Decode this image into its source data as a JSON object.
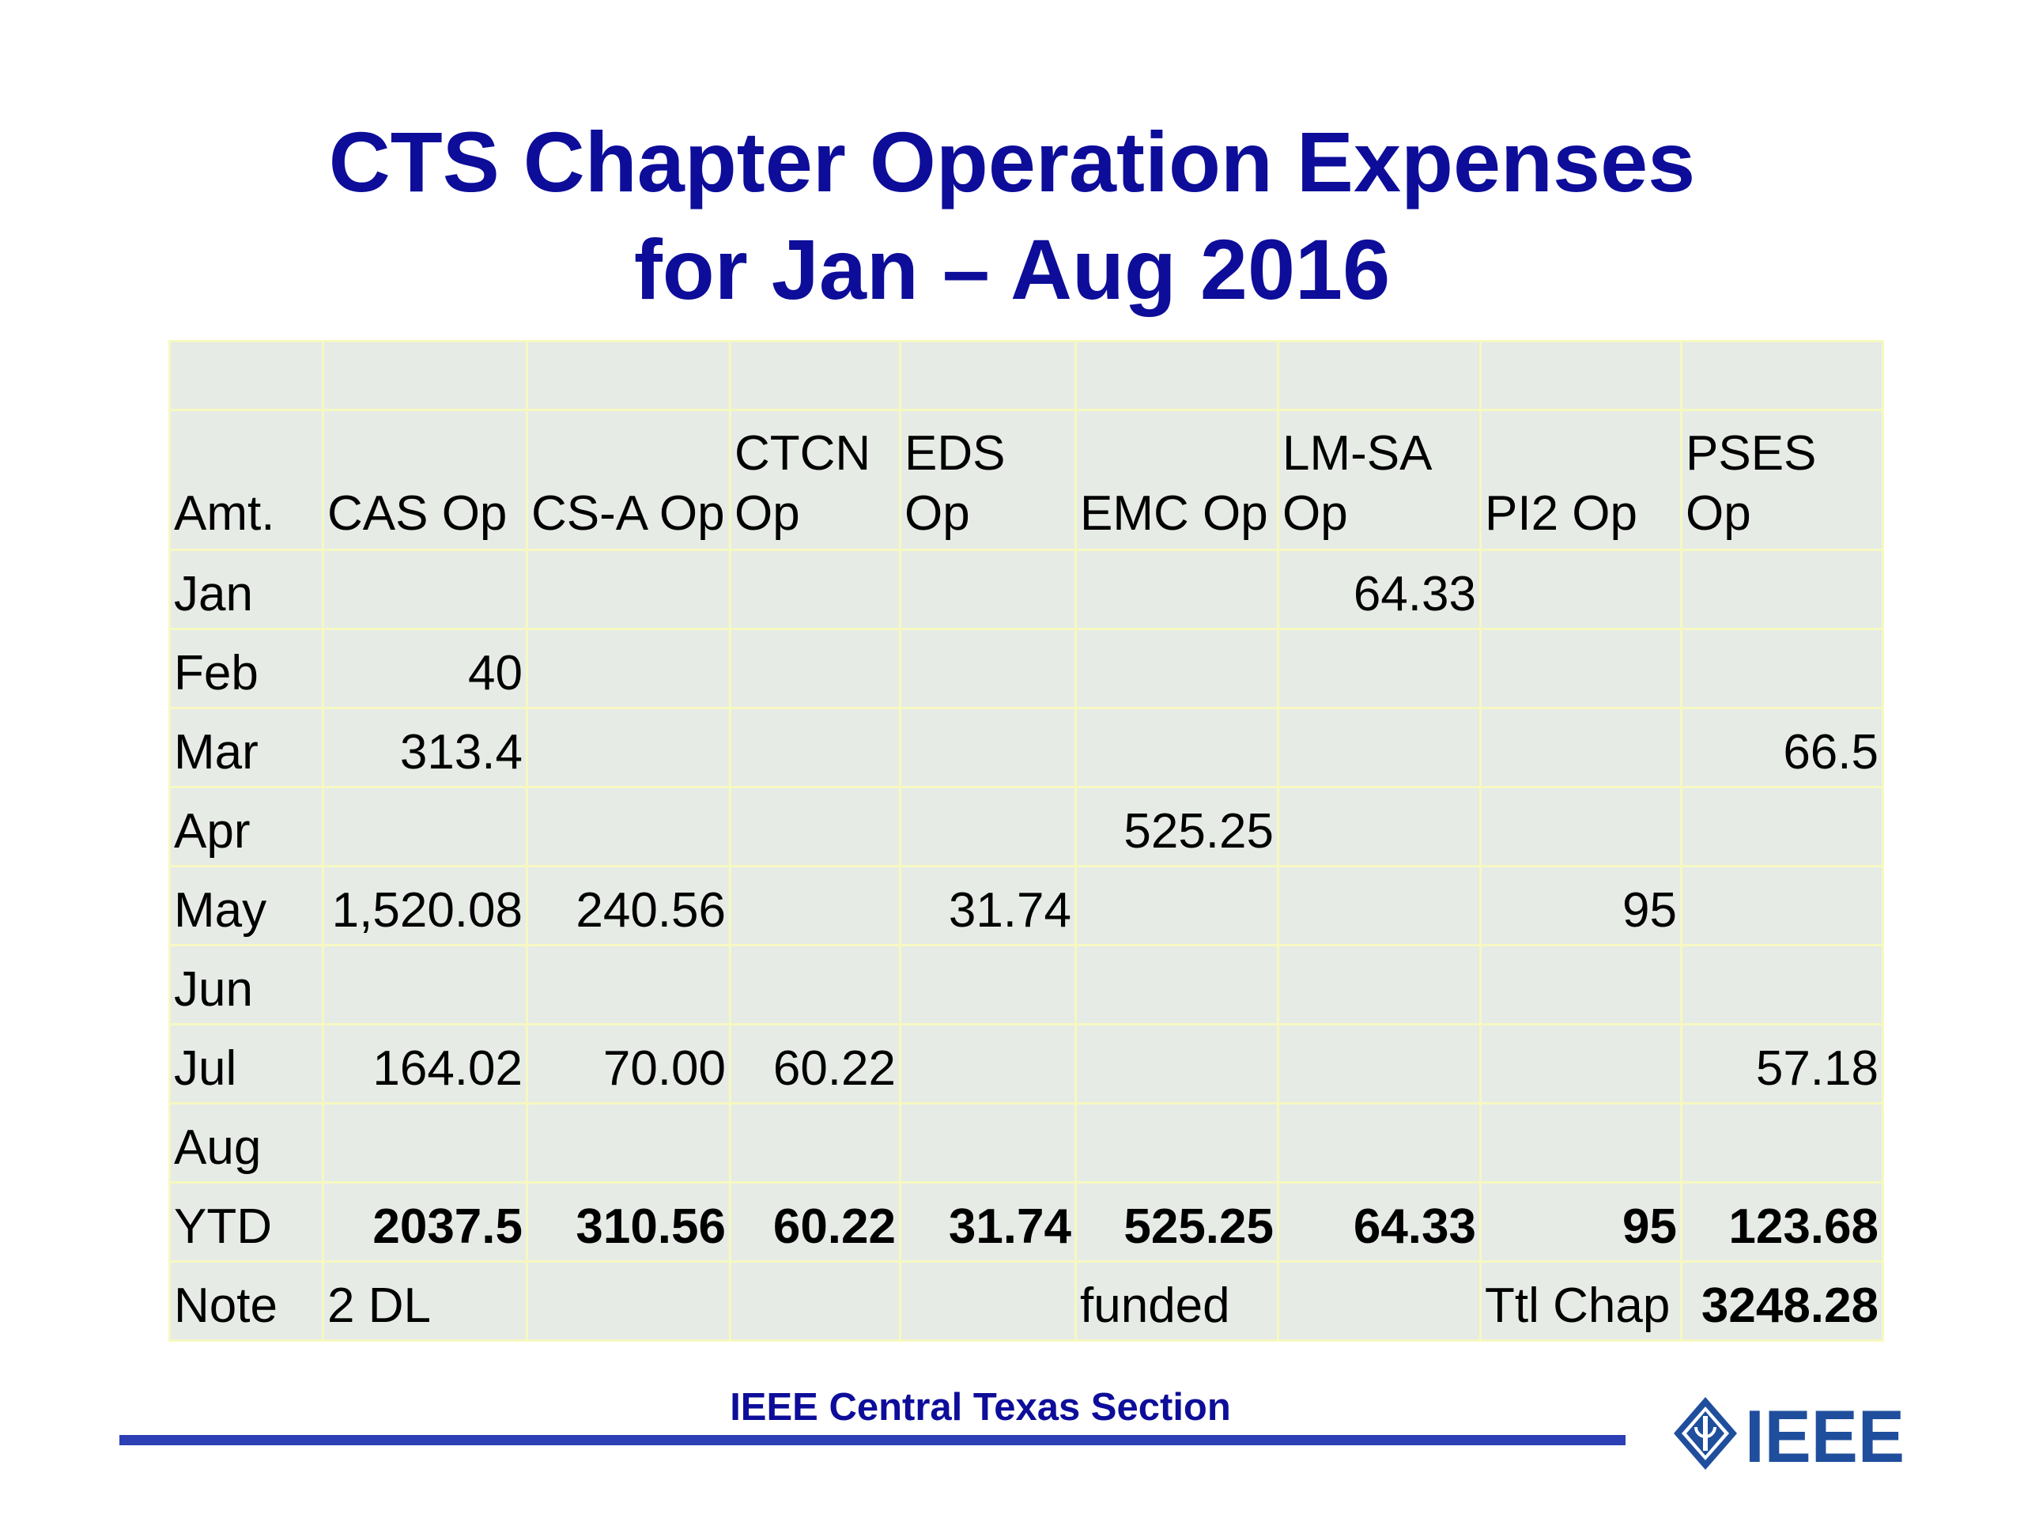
{
  "title": {
    "line1": "CTS Chapter Operation Expenses",
    "line2": "for Jan – Aug 2016"
  },
  "table": {
    "headers": [
      "Amt.",
      "CAS Op",
      "CS-A Op",
      "CTCN Op",
      "EDS Op",
      "EMC Op",
      "LM-SA Op",
      "PI2 Op",
      "PSES Op"
    ],
    "rows": [
      [
        "Jan",
        "",
        "",
        "",
        "",
        "",
        "64.33",
        "",
        ""
      ],
      [
        "Feb",
        "40",
        "",
        "",
        "",
        "",
        "",
        "",
        ""
      ],
      [
        "Mar",
        "313.4",
        "",
        "",
        "",
        "",
        "",
        "",
        "66.5"
      ],
      [
        "Apr",
        "",
        "",
        "",
        "",
        "525.25",
        "",
        "",
        ""
      ],
      [
        "May",
        "1,520.08",
        "240.56",
        "",
        "31.74",
        "",
        "",
        "95",
        ""
      ],
      [
        "Jun",
        "",
        "",
        "",
        "",
        "",
        "",
        "",
        ""
      ],
      [
        "Jul",
        "164.02",
        "70.00",
        "60.22",
        "",
        "",
        "",
        "",
        "57.18"
      ],
      [
        "Aug",
        "",
        "",
        "",
        "",
        "",
        "",
        "",
        ""
      ],
      [
        "YTD",
        "2037.5",
        "310.56",
        "60.22",
        "31.74",
        "525.25",
        "64.33",
        "95",
        "123.68"
      ],
      [
        "Note",
        "2 DL",
        "",
        "",
        "",
        "funded",
        "",
        "Ttl Chap",
        "3248.28"
      ]
    ]
  },
  "footer": {
    "text": "IEEE Central Texas Section",
    "logo_text": "IEEE"
  },
  "colors": {
    "title": "#0d0d9a",
    "cell_bg": "#e6ebe6",
    "grid": "#f6f8c0",
    "footer_line": "#2c3fb5",
    "logo": "#1f4e9c"
  }
}
